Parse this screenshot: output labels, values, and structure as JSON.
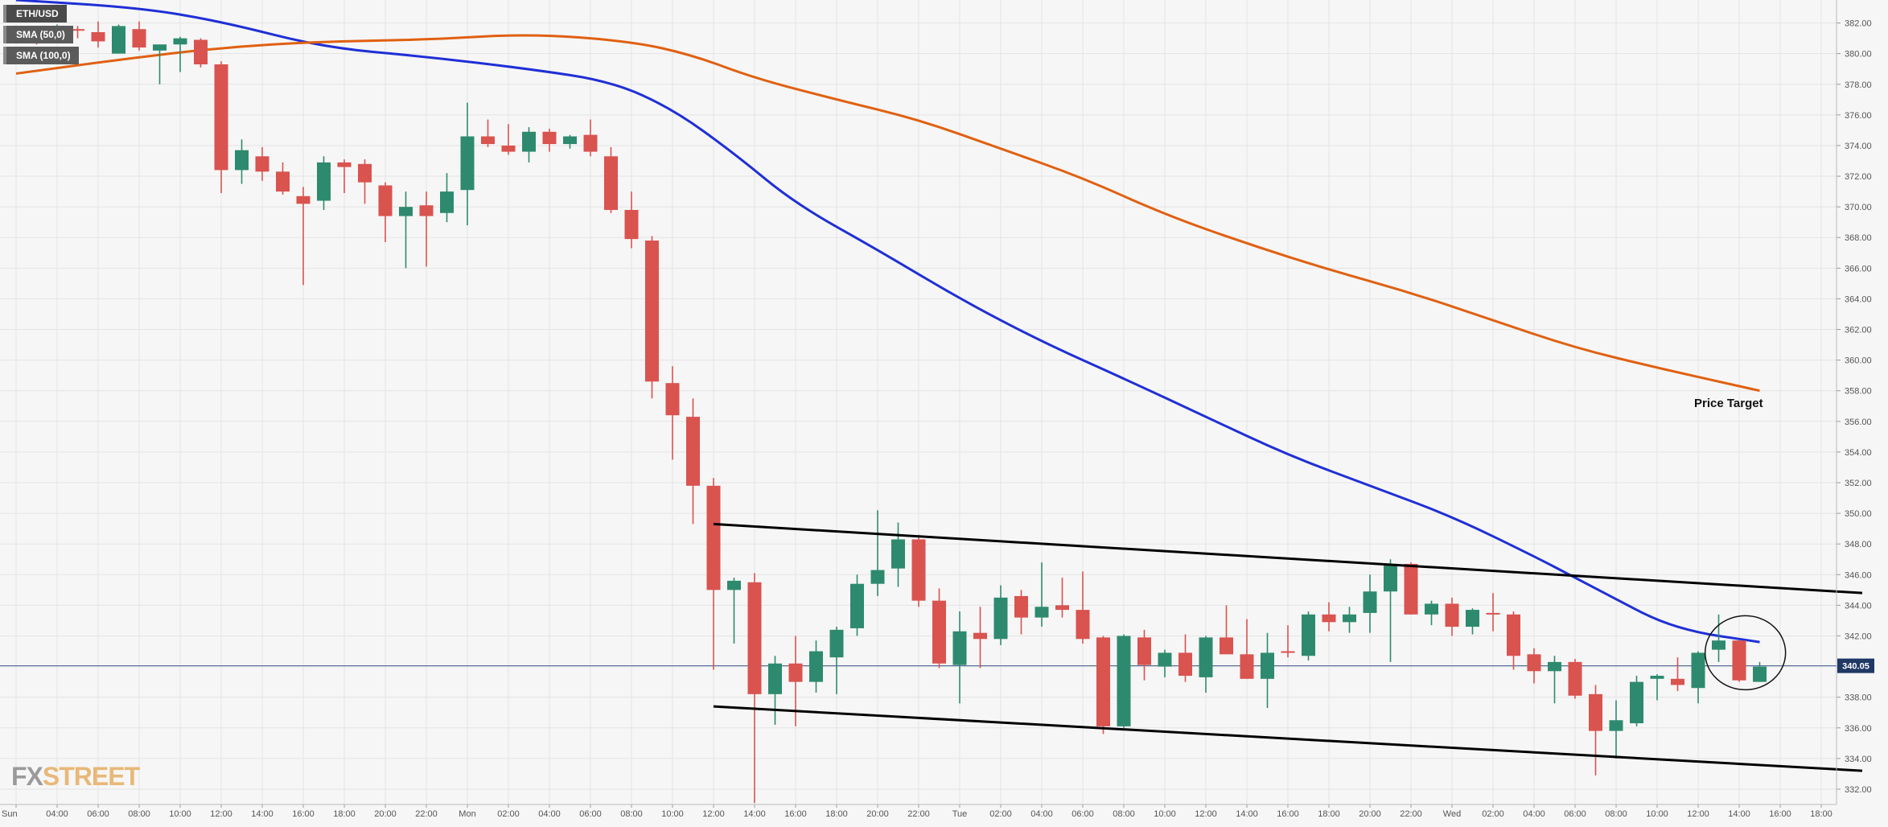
{
  "legend": {
    "symbol": "ETH/USD",
    "sma50": "SMA (50,0)",
    "sma100": "SMA (100,0)"
  },
  "watermark": {
    "fx": "FX",
    "street": "STREET"
  },
  "annotation": {
    "price_target": "Price Target"
  },
  "current_price_label": "340.05",
  "colors": {
    "bull": "#2e8a6e",
    "bear": "#d9534f",
    "sma50": "#1f2fd6",
    "sma100": "#e06010",
    "trendline": "#000000",
    "price_line": "#3a5a8a",
    "price_badge": "#1f3864",
    "background": "#f6f6f6",
    "grid": "#e4e4e4"
  },
  "chart_data": {
    "type": "candlestick",
    "symbol": "ETH/USD",
    "interval_hours": 1,
    "ylim": [
      331,
      383.5
    ],
    "y_ticks": [
      "382.00",
      "380.00",
      "378.00",
      "376.00",
      "374.00",
      "372.00",
      "370.00",
      "368.00",
      "366.00",
      "364.00",
      "362.00",
      "360.00",
      "358.00",
      "356.00",
      "354.00",
      "352.00",
      "350.00",
      "348.00",
      "346.00",
      "344.00",
      "342.00",
      "340.00",
      "338.00",
      "336.00",
      "334.00",
      "332.00"
    ],
    "x_ticks": [
      {
        "i": 0,
        "label": "Sun"
      },
      {
        "i": 2,
        "label": "04:00"
      },
      {
        "i": 4,
        "label": "06:00"
      },
      {
        "i": 6,
        "label": "08:00"
      },
      {
        "i": 8,
        "label": "10:00"
      },
      {
        "i": 10,
        "label": "12:00"
      },
      {
        "i": 12,
        "label": "14:00"
      },
      {
        "i": 14,
        "label": "16:00"
      },
      {
        "i": 16,
        "label": "18:00"
      },
      {
        "i": 18,
        "label": "20:00"
      },
      {
        "i": 20,
        "label": "22:00"
      },
      {
        "i": 22,
        "label": "Mon"
      },
      {
        "i": 24,
        "label": "02:00"
      },
      {
        "i": 26,
        "label": "04:00"
      },
      {
        "i": 28,
        "label": "06:00"
      },
      {
        "i": 30,
        "label": "08:00"
      },
      {
        "i": 32,
        "label": "10:00"
      },
      {
        "i": 34,
        "label": "12:00"
      },
      {
        "i": 36,
        "label": "14:00"
      },
      {
        "i": 38,
        "label": "16:00"
      },
      {
        "i": 40,
        "label": "18:00"
      },
      {
        "i": 42,
        "label": "20:00"
      },
      {
        "i": 44,
        "label": "22:00"
      },
      {
        "i": 46,
        "label": "Tue"
      },
      {
        "i": 48,
        "label": "02:00"
      },
      {
        "i": 50,
        "label": "04:00"
      },
      {
        "i": 52,
        "label": "06:00"
      },
      {
        "i": 54,
        "label": "08:00"
      },
      {
        "i": 56,
        "label": "10:00"
      },
      {
        "i": 58,
        "label": "12:00"
      },
      {
        "i": 60,
        "label": "14:00"
      },
      {
        "i": 62,
        "label": "16:00"
      },
      {
        "i": 64,
        "label": "18:00"
      },
      {
        "i": 66,
        "label": "20:00"
      },
      {
        "i": 68,
        "label": "22:00"
      },
      {
        "i": 70,
        "label": "Wed"
      },
      {
        "i": 72,
        "label": "02:00"
      },
      {
        "i": 74,
        "label": "04:00"
      },
      {
        "i": 76,
        "label": "06:00"
      },
      {
        "i": 78,
        "label": "08:00"
      },
      {
        "i": 80,
        "label": "10:00"
      },
      {
        "i": 82,
        "label": "12:00"
      },
      {
        "i": 84,
        "label": "14:00"
      },
      {
        "i": 86,
        "label": "16:00"
      },
      {
        "i": 88,
        "label": "18:00"
      }
    ],
    "candles": [
      [
        381.2,
        381.8,
        380.8,
        381.3
      ],
      [
        381.3,
        381.8,
        380.6,
        381.0
      ],
      [
        381.0,
        381.9,
        380.9,
        381.6
      ],
      [
        381.6,
        381.8,
        381.0,
        381.5
      ],
      [
        381.4,
        382.1,
        380.4,
        380.8
      ],
      [
        380.0,
        381.9,
        380.0,
        381.8
      ],
      [
        381.6,
        382.1,
        380.2,
        380.4
      ],
      [
        380.2,
        380.6,
        378.0,
        380.6
      ],
      [
        380.6,
        381.1,
        378.8,
        381.0
      ],
      [
        380.9,
        381.0,
        379.1,
        379.3
      ],
      [
        379.3,
        379.5,
        370.9,
        372.4
      ],
      [
        372.4,
        374.4,
        371.5,
        373.7
      ],
      [
        373.3,
        373.9,
        371.7,
        372.3
      ],
      [
        372.3,
        372.9,
        370.8,
        371.0
      ],
      [
        370.7,
        371.3,
        364.9,
        370.2
      ],
      [
        370.4,
        373.3,
        369.8,
        372.9
      ],
      [
        372.9,
        373.1,
        370.9,
        372.6
      ],
      [
        372.8,
        373.1,
        370.2,
        371.6
      ],
      [
        371.4,
        371.6,
        367.7,
        369.4
      ],
      [
        369.4,
        371.0,
        366.0,
        370.0
      ],
      [
        370.1,
        371.0,
        366.1,
        369.4
      ],
      [
        369.6,
        372.2,
        369.0,
        371.0
      ],
      [
        371.1,
        376.8,
        368.8,
        374.6
      ],
      [
        374.6,
        375.7,
        373.9,
        374.1
      ],
      [
        374.0,
        375.4,
        373.4,
        373.6
      ],
      [
        373.6,
        375.2,
        372.9,
        374.9
      ],
      [
        374.9,
        375.1,
        373.6,
        374.1
      ],
      [
        374.1,
        374.7,
        373.8,
        374.6
      ],
      [
        374.7,
        375.7,
        373.3,
        373.6
      ],
      [
        373.3,
        373.9,
        369.6,
        369.8
      ],
      [
        369.8,
        371.0,
        367.3,
        367.9
      ],
      [
        367.8,
        368.1,
        357.5,
        358.6
      ],
      [
        358.5,
        359.6,
        353.5,
        356.4
      ],
      [
        356.3,
        357.5,
        349.3,
        351.8
      ],
      [
        351.8,
        352.3,
        339.8,
        345.0
      ],
      [
        345.0,
        345.8,
        341.5,
        345.6
      ],
      [
        345.5,
        346.1,
        331.1,
        338.2
      ],
      [
        338.2,
        340.7,
        336.2,
        340.2
      ],
      [
        340.2,
        342.0,
        336.1,
        339.0
      ],
      [
        339.0,
        341.7,
        338.3,
        341.0
      ],
      [
        340.6,
        342.6,
        338.2,
        342.4
      ],
      [
        342.5,
        346.0,
        342.0,
        345.4
      ],
      [
        345.4,
        350.2,
        344.6,
        346.3
      ],
      [
        346.4,
        349.4,
        345.2,
        348.3
      ],
      [
        348.3,
        348.6,
        343.9,
        344.3
      ],
      [
        344.3,
        345.1,
        339.9,
        340.2
      ],
      [
        340.1,
        343.6,
        337.6,
        342.3
      ],
      [
        342.2,
        343.9,
        339.9,
        341.8
      ],
      [
        341.8,
        345.3,
        341.4,
        344.5
      ],
      [
        344.6,
        345.0,
        342.1,
        343.2
      ],
      [
        343.2,
        346.8,
        342.6,
        343.9
      ],
      [
        344.0,
        345.8,
        343.2,
        343.7
      ],
      [
        343.7,
        346.2,
        341.5,
        341.8
      ],
      [
        341.9,
        342.0,
        335.6,
        336.1
      ],
      [
        336.1,
        342.1,
        336.0,
        342.0
      ],
      [
        341.9,
        342.4,
        339.1,
        340.1
      ],
      [
        340.0,
        341.1,
        339.3,
        340.9
      ],
      [
        340.9,
        342.1,
        339.0,
        339.4
      ],
      [
        339.3,
        342.0,
        338.3,
        341.9
      ],
      [
        341.9,
        344.0,
        341.0,
        340.8
      ],
      [
        340.8,
        343.1,
        339.2,
        339.2
      ],
      [
        339.2,
        342.2,
        337.3,
        340.9
      ],
      [
        341.0,
        342.7,
        340.6,
        340.9
      ],
      [
        340.7,
        343.6,
        340.4,
        343.4
      ],
      [
        343.4,
        344.2,
        342.3,
        342.9
      ],
      [
        342.9,
        343.9,
        342.2,
        343.4
      ],
      [
        343.5,
        346.0,
        342.2,
        344.9
      ],
      [
        344.9,
        347.0,
        340.3,
        346.7
      ],
      [
        346.7,
        346.8,
        343.4,
        343.4
      ],
      [
        343.4,
        344.3,
        342.7,
        344.1
      ],
      [
        344.1,
        344.5,
        342.0,
        342.6
      ],
      [
        342.6,
        343.8,
        342.1,
        343.7
      ],
      [
        343.5,
        344.8,
        342.3,
        343.4
      ],
      [
        343.4,
        343.6,
        339.8,
        340.7
      ],
      [
        340.8,
        341.2,
        338.9,
        339.7
      ],
      [
        339.7,
        340.7,
        337.6,
        340.3
      ],
      [
        340.3,
        340.5,
        337.9,
        338.1
      ],
      [
        338.2,
        338.8,
        332.9,
        335.8
      ],
      [
        335.8,
        337.8,
        334.0,
        336.5
      ],
      [
        336.3,
        339.4,
        336.1,
        339.0
      ],
      [
        339.2,
        339.5,
        337.8,
        339.4
      ],
      [
        339.2,
        340.6,
        338.4,
        338.8
      ],
      [
        338.6,
        341.0,
        337.6,
        340.9
      ],
      [
        341.1,
        343.4,
        340.3,
        341.7
      ],
      [
        341.7,
        341.7,
        339.0,
        339.1
      ],
      [
        339.0,
        340.3,
        339.0,
        340.0
      ]
    ],
    "series": [
      {
        "name": "SMA (50,0)",
        "points": [
          [
            0,
            383.5
          ],
          [
            6,
            383.0
          ],
          [
            10,
            382.1
          ],
          [
            15,
            380.4
          ],
          [
            20,
            379.8
          ],
          [
            25,
            379.0
          ],
          [
            29,
            378.2
          ],
          [
            32,
            376.4
          ],
          [
            35,
            373.5
          ],
          [
            38,
            370.2
          ],
          [
            42,
            367.2
          ],
          [
            46,
            364.0
          ],
          [
            50,
            361.2
          ],
          [
            54,
            358.8
          ],
          [
            58,
            356.3
          ],
          [
            62,
            353.8
          ],
          [
            66,
            351.8
          ],
          [
            70,
            349.8
          ],
          [
            74,
            347.2
          ],
          [
            76,
            345.8
          ],
          [
            78,
            344.4
          ],
          [
            80,
            343.0
          ],
          [
            82,
            342.2
          ],
          [
            84,
            341.8
          ],
          [
            85,
            341.6
          ]
        ]
      },
      {
        "name": "SMA (100,0)",
        "points": [
          [
            0,
            378.7
          ],
          [
            5,
            379.6
          ],
          [
            10,
            380.4
          ],
          [
            15,
            380.8
          ],
          [
            20,
            380.9
          ],
          [
            25,
            381.3
          ],
          [
            30,
            380.8
          ],
          [
            33,
            379.9
          ],
          [
            36,
            378.4
          ],
          [
            40,
            377.0
          ],
          [
            44,
            375.7
          ],
          [
            48,
            373.8
          ],
          [
            52,
            371.9
          ],
          [
            56,
            369.5
          ],
          [
            60,
            367.6
          ],
          [
            64,
            365.9
          ],
          [
            68,
            364.4
          ],
          [
            72,
            362.6
          ],
          [
            76,
            360.8
          ],
          [
            80,
            359.5
          ],
          [
            84,
            358.3
          ],
          [
            85,
            358.0
          ]
        ]
      }
    ],
    "trendlines": [
      {
        "points": [
          [
            34,
            349.3
          ],
          [
            90,
            344.8
          ]
        ]
      },
      {
        "points": [
          [
            34,
            337.4
          ],
          [
            90,
            333.2
          ]
        ]
      }
    ],
    "current_price": 340.05,
    "highlight_circle": {
      "x": 84.3,
      "y": 340.9
    }
  }
}
